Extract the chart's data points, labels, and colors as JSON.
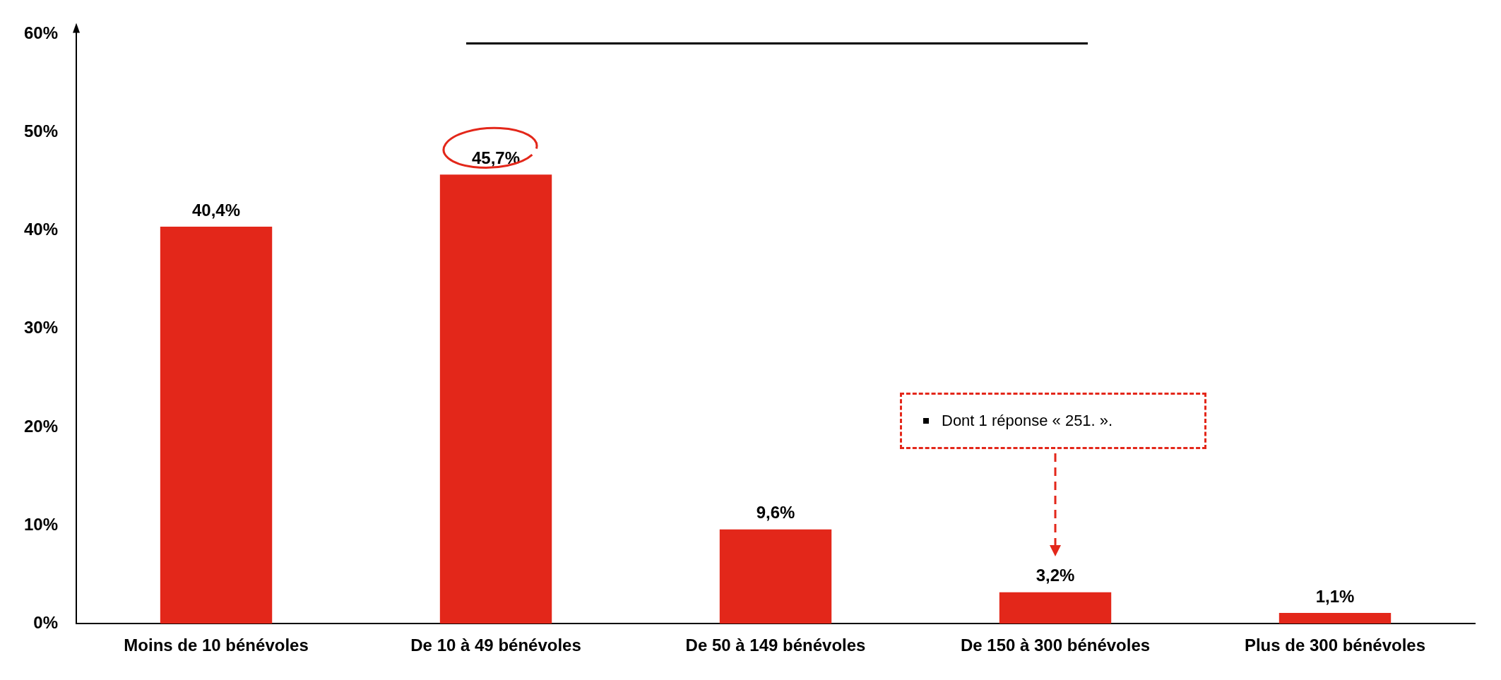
{
  "chart_data": {
    "type": "bar",
    "categories": [
      "Moins de 10 bénévoles",
      "De 10 à 49 bénévoles",
      "De 50 à 149 bénévoles",
      "De 150 à 300 bénévoles",
      "Plus de 300 bénévoles"
    ],
    "values": [
      40.4,
      45.7,
      9.6,
      3.2,
      1.1
    ],
    "value_labels": [
      "40,4%",
      "45,7%",
      "9,6%",
      "3,2%",
      "1,1%"
    ],
    "color": "#e3271a",
    "ylim": [
      0,
      60
    ],
    "yticks": [
      {
        "value": 0,
        "label": "0%"
      },
      {
        "value": 10,
        "label": "10%"
      },
      {
        "value": 20,
        "label": "20%"
      },
      {
        "value": 30,
        "label": "30%"
      },
      {
        "value": 40,
        "label": "40%"
      },
      {
        "value": 50,
        "label": "50%"
      },
      {
        "value": 60,
        "label": "60%"
      }
    ],
    "grid": false,
    "legend": false,
    "annotations": [
      "Dont 1 réponse « 251. »."
    ]
  }
}
